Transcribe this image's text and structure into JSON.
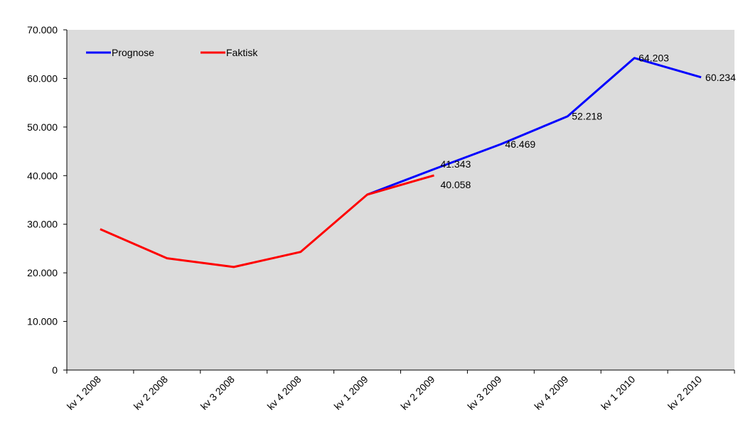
{
  "chart_data": {
    "type": "line",
    "categories": [
      "kv 1 2008",
      "kv 2 2008",
      "kv 3 2008",
      "kv 4 2008",
      "kv 1 2009",
      "kv 2 2009",
      "kv 3 2009",
      "kv 4 2009",
      "kv 1 2010",
      "kv 2 2010"
    ],
    "series": [
      {
        "name": "Prognose",
        "color": "#0000ff",
        "values": [
          null,
          null,
          null,
          null,
          36100,
          41343,
          46469,
          52218,
          64203,
          60234
        ],
        "labels": [
          null,
          null,
          null,
          null,
          null,
          "41.343",
          "46.469",
          "52.218",
          "64.203",
          "60.234"
        ]
      },
      {
        "name": "Faktisk",
        "color": "#ff0000",
        "values": [
          29000,
          23000,
          21200,
          24300,
          36100,
          40058,
          null,
          null,
          null,
          null
        ],
        "labels": [
          null,
          null,
          null,
          null,
          null,
          "40.058",
          null,
          null,
          null,
          null
        ]
      }
    ],
    "yticks": [
      {
        "value": 0,
        "label": "0"
      },
      {
        "value": 10000,
        "label": "10.000"
      },
      {
        "value": 20000,
        "label": "20.000"
      },
      {
        "value": 30000,
        "label": "30.000"
      },
      {
        "value": 40000,
        "label": "40.000"
      },
      {
        "value": 50000,
        "label": "50.000"
      },
      {
        "value": 60000,
        "label": "60.000"
      },
      {
        "value": 70000,
        "label": "70.000"
      }
    ],
    "ylim": [
      0,
      70000
    ],
    "title": "",
    "xlabel": "",
    "ylabel": "",
    "grid": false,
    "legend": "top-left",
    "background": "#dcdcdc"
  }
}
